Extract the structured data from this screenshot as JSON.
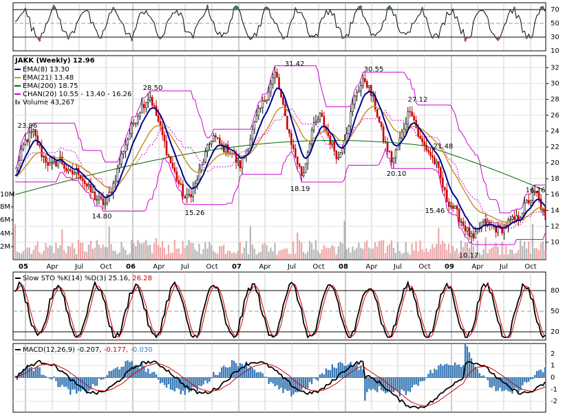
{
  "chart_data": [
    {
      "type": "line",
      "title": "",
      "indicator": "RSI(14)",
      "ylim": [
        10,
        80
      ],
      "yticks": [
        "70",
        "50",
        "30",
        "10"
      ],
      "overbought": 70,
      "oversold": 30
    },
    {
      "type": "line",
      "title": "JAKK (Weekly) 12.96",
      "ticker": "JAKK",
      "period": "Weekly",
      "last_price": "12.96",
      "legend": [
        {
          "key": "ema8",
          "text": "EMA(8) 13.30",
          "color": "#00008b"
        },
        {
          "key": "ema21",
          "text": "EMA(21) 13.48",
          "color": "#c8902a"
        },
        {
          "key": "ema200",
          "text": "EMA(200) 18.75",
          "color": "#006400"
        },
        {
          "key": "chan",
          "text": "CHAN(20) 10.55 - 13.40 - 16.26",
          "color": "#cc00cc"
        },
        {
          "key": "volume",
          "text": "Volume 43,267",
          "color": "#808080"
        }
      ],
      "ylim": [
        9,
        33
      ],
      "yticks": [
        "32",
        "30",
        "28",
        "26",
        "24",
        "22",
        "20",
        "18",
        "16",
        "14",
        "12",
        "10"
      ],
      "volume_ticks": [
        "10M",
        "8M",
        "6M",
        "4M",
        "2M"
      ],
      "xticks": [
        "05",
        "Apr",
        "Jul",
        "Oct",
        "06",
        "Apr",
        "Jul",
        "Oct",
        "07",
        "Apr",
        "Jul",
        "Oct",
        "08",
        "Apr",
        "Jul",
        "Oct",
        "09",
        "Apr",
        "Jul",
        "Oct"
      ],
      "price_annotations": [
        "23.96",
        "14.80",
        "28.50",
        "15.26",
        "31.42",
        "18.19",
        "30.55",
        "20.10",
        "27.12",
        "21.48",
        "15.46",
        "10.17",
        "16.26"
      ],
      "close_series": [
        18.2,
        22.5,
        23.96,
        21.0,
        19.5,
        20.5,
        18.5,
        19.0,
        17.0,
        15.5,
        14.8,
        17.5,
        21.5,
        24.5,
        27.0,
        28.5,
        25.0,
        21.0,
        18.0,
        15.26,
        17.0,
        20.5,
        23.5,
        22.0,
        21.5,
        19.5,
        22.5,
        26.0,
        28.5,
        31.42,
        26.0,
        21.5,
        18.19,
        24.0,
        26.0,
        23.0,
        20.5,
        24.5,
        29.0,
        30.55,
        27.5,
        23.0,
        20.1,
        23.5,
        27.12,
        23.0,
        21.48,
        19.5,
        15.46,
        14.0,
        12.0,
        10.17,
        12.5,
        12.0,
        11.5,
        12.5,
        13.0,
        15.0,
        16.26,
        12.96
      ]
    },
    {
      "type": "line",
      "title": "Slow STO %K(14) %D(3) 25.16, 26.28",
      "indicator": "Slow STO",
      "params": "%K(14) %D(3)",
      "k_value": "25.16",
      "d_value": "26.28",
      "ylim": [
        10,
        95
      ],
      "yticks": [
        "80",
        "50",
        "20"
      ]
    },
    {
      "type": "line",
      "title": "MACD(12,26,9) -0.207, -0.177, -0.030",
      "indicator": "MACD",
      "params": "(12,26,9)",
      "macd_value": "-0.207",
      "signal_value": "-0.177",
      "hist_value": "-0.030",
      "ylim": [
        -2.8,
        2.4
      ],
      "yticks": [
        "2",
        "1",
        "0",
        "-1",
        "-2"
      ]
    }
  ]
}
